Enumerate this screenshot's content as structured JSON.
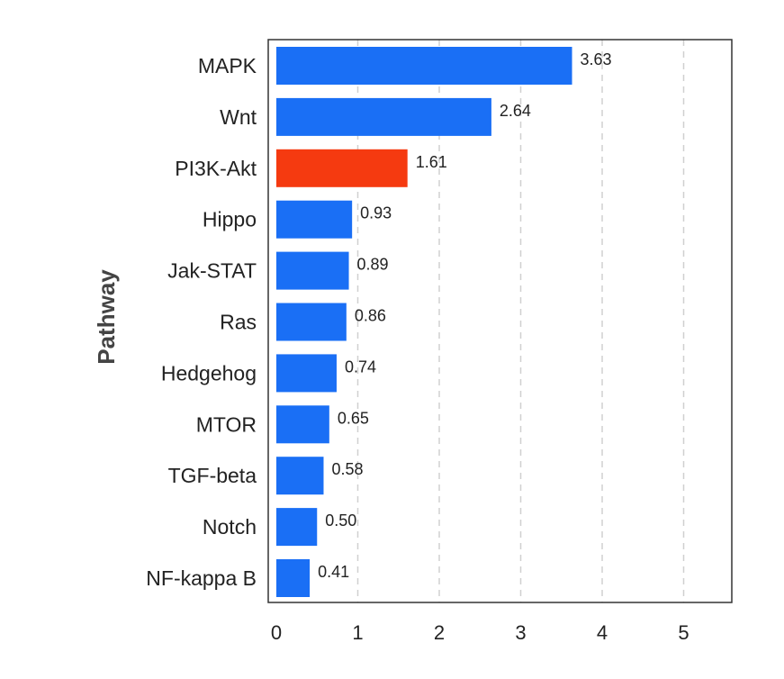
{
  "chart_data": {
    "type": "bar",
    "orientation": "horizontal",
    "categories": [
      "MAPK",
      "Wnt",
      "PI3K-Akt",
      "Hippo",
      "Jak-STAT",
      "Ras",
      "Hedgehog",
      "MTOR",
      "TGF-beta",
      "Notch",
      "NF-kappa B"
    ],
    "values": [
      3.63,
      2.64,
      1.61,
      0.93,
      0.89,
      0.86,
      0.74,
      0.65,
      0.58,
      0.5,
      0.41
    ],
    "value_labels": [
      "3.63",
      "2.64",
      "1.61",
      "0.93",
      "0.89",
      "0.86",
      "0.74",
      "0.65",
      "0.58",
      "0.50",
      "0.41"
    ],
    "colors": [
      "#1a6ff5",
      "#1a6ff5",
      "#f53a10",
      "#1a6ff5",
      "#1a6ff5",
      "#1a6ff5",
      "#1a6ff5",
      "#1a6ff5",
      "#1a6ff5",
      "#1a6ff5",
      "#1a6ff5"
    ],
    "highlight_color": "#f53a10",
    "bar_color": "#1a6ff5",
    "title": "",
    "xlabel": "",
    "ylabel": "Pathway",
    "xlim": [
      0,
      5.6
    ],
    "xticks": [
      0,
      1,
      2,
      3,
      4,
      5
    ],
    "xtick_labels": [
      "0",
      "1",
      "2",
      "3",
      "4",
      "5"
    ],
    "grid": "vertical-dashed",
    "legend": "none"
  }
}
